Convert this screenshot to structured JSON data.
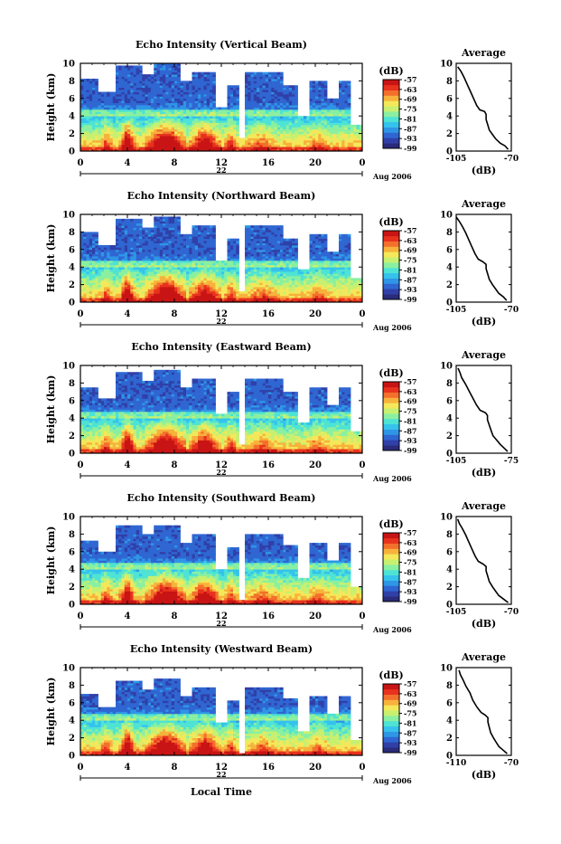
{
  "figure": {
    "xlabel": "Local Time",
    "date_label": "Aug 2006",
    "day_label": "22",
    "colorbar_unit": "(dB)",
    "colorbar_ticks": [
      "-57",
      "-63",
      "-69",
      "-75",
      "-81",
      "-87",
      "-93",
      "-99"
    ],
    "profile_title": "Average",
    "profile_xlabel": "(dB)"
  },
  "colors": {
    "colormap": [
      "#2a2b7a",
      "#3040a8",
      "#2f66d2",
      "#2f96e6",
      "#35c2ec",
      "#4ee3d4",
      "#8af0a0",
      "#c8f070",
      "#f4e85a",
      "#f7b23c",
      "#f3702c",
      "#e8321e",
      "#c81414"
    ]
  },
  "chart_data": [
    {
      "type": "heatmap",
      "title": "Echo Intensity (Vertical Beam)",
      "ylabel": "Height (km)",
      "x_ticks": [
        "0",
        "4",
        "8",
        "12",
        "16",
        "20",
        "0"
      ],
      "y_ticks": [
        "0",
        "2",
        "4",
        "6",
        "8",
        "10"
      ],
      "xlim": [
        0,
        24
      ],
      "ylim": [
        0,
        10
      ],
      "clim": [
        -99,
        -57
      ],
      "profile": {
        "title": "Average",
        "xlim": [
          -105,
          -70
        ],
        "x_ticks": [
          "-105",
          "-70"
        ],
        "y_ticks": [
          "0",
          "2",
          "4",
          "6",
          "8",
          "10"
        ],
        "points": [
          [
            -72,
            0.2
          ],
          [
            -74,
            0.6
          ],
          [
            -77,
            0.9
          ],
          [
            -80,
            1.4
          ],
          [
            -82,
            1.9
          ],
          [
            -84,
            2.4
          ],
          [
            -85,
            3.0
          ],
          [
            -86,
            3.6
          ],
          [
            -86,
            4.2
          ],
          [
            -87,
            4.5
          ],
          [
            -90,
            4.7
          ],
          [
            -92,
            5.2
          ],
          [
            -94,
            6.0
          ],
          [
            -96,
            6.8
          ],
          [
            -98,
            7.6
          ],
          [
            -100,
            8.4
          ],
          [
            -102,
            9.1
          ],
          [
            -104,
            9.6
          ]
        ]
      }
    },
    {
      "type": "heatmap",
      "title": "Echo Intensity (Northward Beam)",
      "ylabel": "Height (km)",
      "x_ticks": [
        "0",
        "4",
        "8",
        "12",
        "16",
        "20",
        "0"
      ],
      "y_ticks": [
        "0",
        "2",
        "4",
        "6",
        "8",
        "10"
      ],
      "xlim": [
        0,
        24
      ],
      "ylim": [
        0,
        10
      ],
      "clim": [
        -99,
        -57
      ],
      "profile": {
        "title": "Average",
        "xlim": [
          -105,
          -70
        ],
        "x_ticks": [
          "-105",
          "-70"
        ],
        "y_ticks": [
          "0",
          "2",
          "4",
          "6",
          "8",
          "10"
        ],
        "points": [
          [
            -73,
            0.2
          ],
          [
            -75,
            0.6
          ],
          [
            -78,
            1.0
          ],
          [
            -80,
            1.5
          ],
          [
            -82,
            2.0
          ],
          [
            -84,
            2.6
          ],
          [
            -85,
            3.2
          ],
          [
            -86,
            3.8
          ],
          [
            -86,
            4.3
          ],
          [
            -88,
            4.6
          ],
          [
            -91,
            4.9
          ],
          [
            -93,
            5.5
          ],
          [
            -95,
            6.3
          ],
          [
            -97,
            7.1
          ],
          [
            -99,
            7.9
          ],
          [
            -101,
            8.6
          ],
          [
            -103,
            9.2
          ],
          [
            -105,
            9.7
          ]
        ]
      }
    },
    {
      "type": "heatmap",
      "title": "Echo Intensity (Eastward Beam)",
      "ylabel": "Height (km)",
      "x_ticks": [
        "0",
        "4",
        "8",
        "12",
        "16",
        "20",
        "0"
      ],
      "y_ticks": [
        "0",
        "2",
        "4",
        "6",
        "8",
        "10"
      ],
      "xlim": [
        0,
        24
      ],
      "ylim": [
        0,
        10
      ],
      "clim": [
        -99,
        -57
      ],
      "profile": {
        "title": "Average",
        "xlim": [
          -105,
          -75
        ],
        "x_ticks": [
          "-105",
          "-75"
        ],
        "y_ticks": [
          "0",
          "2",
          "4",
          "6",
          "8",
          "10"
        ],
        "points": [
          [
            -77,
            0.2
          ],
          [
            -79,
            0.6
          ],
          [
            -81,
            1.0
          ],
          [
            -83,
            1.5
          ],
          [
            -85,
            2.0
          ],
          [
            -86,
            2.6
          ],
          [
            -87,
            3.2
          ],
          [
            -88,
            3.8
          ],
          [
            -88,
            4.3
          ],
          [
            -89,
            4.6
          ],
          [
            -92,
            4.9
          ],
          [
            -94,
            5.5
          ],
          [
            -96,
            6.3
          ],
          [
            -98,
            7.1
          ],
          [
            -100,
            7.9
          ],
          [
            -102,
            8.6
          ],
          [
            -103,
            9.2
          ],
          [
            -104,
            9.7
          ]
        ]
      }
    },
    {
      "type": "heatmap",
      "title": "Echo Intensity (Southward Beam)",
      "ylabel": "Height (km)",
      "x_ticks": [
        "0",
        "4",
        "8",
        "12",
        "16",
        "20",
        "0"
      ],
      "y_ticks": [
        "0",
        "2",
        "4",
        "6",
        "8",
        "10"
      ],
      "xlim": [
        0,
        24
      ],
      "ylim": [
        0,
        10
      ],
      "clim": [
        -99,
        -57
      ],
      "profile": {
        "title": "Average",
        "xlim": [
          -105,
          -70
        ],
        "x_ticks": [
          "-105",
          "-70"
        ],
        "y_ticks": [
          "0",
          "2",
          "4",
          "6",
          "8",
          "10"
        ],
        "points": [
          [
            -72,
            0.2
          ],
          [
            -75,
            0.6
          ],
          [
            -78,
            1.0
          ],
          [
            -80,
            1.5
          ],
          [
            -82,
            2.0
          ],
          [
            -84,
            2.6
          ],
          [
            -85,
            3.2
          ],
          [
            -86,
            3.8
          ],
          [
            -86,
            4.3
          ],
          [
            -88,
            4.6
          ],
          [
            -91,
            4.9
          ],
          [
            -93,
            5.5
          ],
          [
            -95,
            6.3
          ],
          [
            -97,
            7.1
          ],
          [
            -99,
            7.9
          ],
          [
            -101,
            8.6
          ],
          [
            -103,
            9.2
          ],
          [
            -104,
            9.7
          ]
        ]
      }
    },
    {
      "type": "heatmap",
      "title": "Echo Intensity (Westward Beam)",
      "ylabel": "Height (km)",
      "x_ticks": [
        "0",
        "4",
        "8",
        "12",
        "16",
        "20",
        "0"
      ],
      "y_ticks": [
        "0",
        "2",
        "4",
        "6",
        "8",
        "10"
      ],
      "xlim": [
        0,
        24
      ],
      "ylim": [
        0,
        10
      ],
      "clim": [
        -99,
        -57
      ],
      "profile": {
        "title": "Average",
        "xlim": [
          -110,
          -70
        ],
        "x_ticks": [
          "-110",
          "-70"
        ],
        "y_ticks": [
          "0",
          "2",
          "4",
          "6",
          "8",
          "10"
        ],
        "points": [
          [
            -73,
            0.2
          ],
          [
            -76,
            0.6
          ],
          [
            -79,
            1.0
          ],
          [
            -81,
            1.5
          ],
          [
            -83,
            2.0
          ],
          [
            -85,
            2.6
          ],
          [
            -86,
            3.2
          ],
          [
            -87,
            3.8
          ],
          [
            -87,
            4.3
          ],
          [
            -89,
            4.6
          ],
          [
            -92,
            4.9
          ],
          [
            -95,
            5.5
          ],
          [
            -98,
            6.3
          ],
          [
            -100,
            7.1
          ],
          [
            -103,
            7.9
          ],
          [
            -105,
            8.6
          ],
          [
            -107,
            9.2
          ],
          [
            -108,
            9.7
          ]
        ]
      }
    }
  ]
}
